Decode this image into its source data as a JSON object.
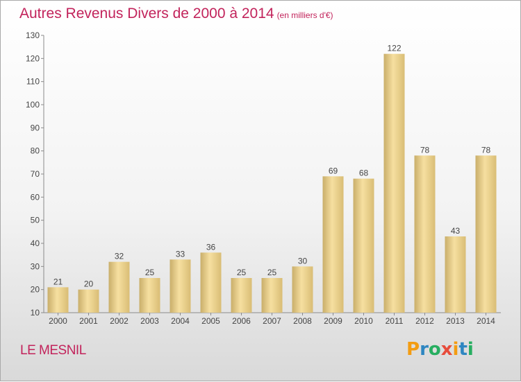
{
  "title": "Autres Revenus Divers de 2000 à 2014",
  "subtitle": "(en milliers d'€)",
  "commune": "LE MESNIL",
  "logo": "Proxiti",
  "colors": {
    "title": "#c2235b",
    "bar_light": "#f6dfa0",
    "bar_dark": "#c9ae6a"
  },
  "chart_data": {
    "type": "bar",
    "categories": [
      "2000",
      "2001",
      "2002",
      "2003",
      "2004",
      "2005",
      "2006",
      "2007",
      "2008",
      "2009",
      "2010",
      "2011",
      "2012",
      "2013",
      "2014"
    ],
    "values": [
      21,
      20,
      32,
      25,
      33,
      36,
      25,
      25,
      30,
      69,
      68,
      122,
      78,
      43,
      78
    ],
    "ylim": [
      10,
      130
    ],
    "yticks": [
      10,
      20,
      30,
      40,
      50,
      60,
      70,
      80,
      90,
      100,
      110,
      120,
      130
    ],
    "grid": false,
    "xlabel": "",
    "ylabel": ""
  }
}
